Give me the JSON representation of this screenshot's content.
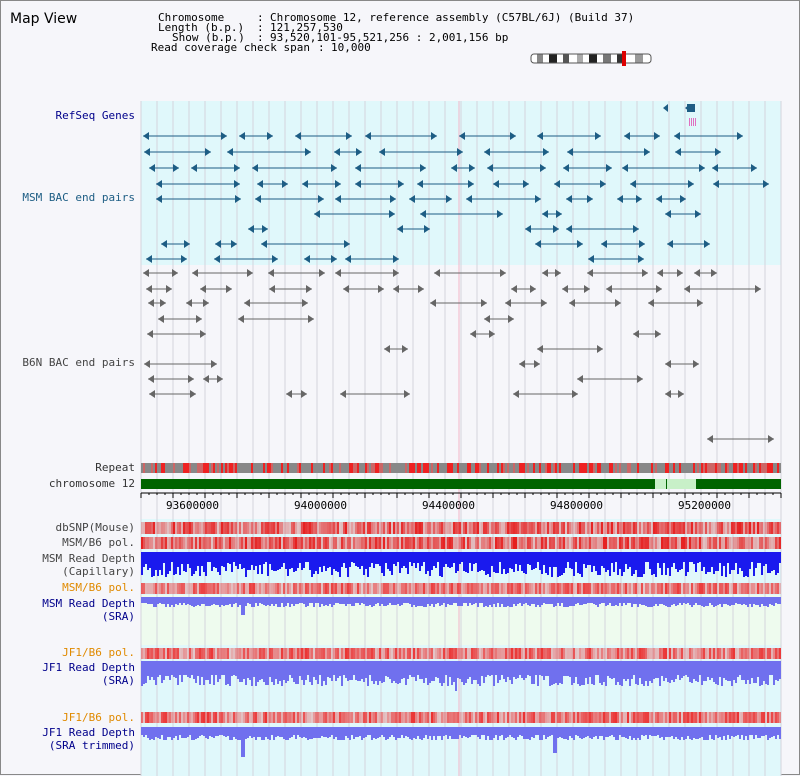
{
  "window": {
    "title": "Map View"
  },
  "header": {
    "chromosome_key": "Chromosome",
    "chromosome_val": "Chromosome 12, reference assembly (C57BL/6J) (Build 37)",
    "length_key": "Length (b.p.)",
    "length_val": "121,257,530",
    "show_key": "Show (b.p.)",
    "show_val": "93,520,101-95,521,256 : 2,001,156 bp",
    "coverage_key": "Read coverage check span",
    "coverage_val": "10,000"
  },
  "tracks": {
    "refseq_genes": "RefSeq Genes",
    "msm_bac": "MSM BAC end pairs",
    "b6n_bac": "B6N BAC end pairs",
    "repeat": "Repeat",
    "chromosome": "chromosome 12",
    "dbsnp": "dbSNP(Mouse)",
    "msm_b6_pol_1": "MSM/B6 pol.",
    "msm_read_depth_cap_1": "MSM Read Depth",
    "msm_read_depth_cap_2": "(Capillary)",
    "msm_b6_pol_2": "MSM/B6 pol.",
    "msm_read_depth_sra_1": "MSM Read Depth",
    "msm_read_depth_sra_2": "(SRA)",
    "jf1_b6_pol_1": "JF1/B6 pol.",
    "jf1_read_depth_sra_1": "JF1 Read Depth",
    "jf1_read_depth_sra_2": "(SRA)",
    "jf1_b6_pol_2": "JF1/B6 pol.",
    "jf1_read_depth_trim_1": "JF1 Read Depth",
    "jf1_read_depth_trim_2": "(SRA trimmed)"
  },
  "axis": {
    "ticks": [
      "93600000",
      "94000000",
      "94400000",
      "94800000",
      "95200000"
    ]
  },
  "colors": {
    "refseq": "#1d5d84",
    "bac_b6n": "#666666",
    "chromosome_fill": "#006400",
    "chromosome_highlight": "#c8f0c8",
    "capillary_depth": "#1a1aee",
    "sra_depth": "#7070ee",
    "pol_red": "#ee3333",
    "track_bg_blue": "#e0f8fb",
    "track_bg_green": "#eefbee"
  }
}
